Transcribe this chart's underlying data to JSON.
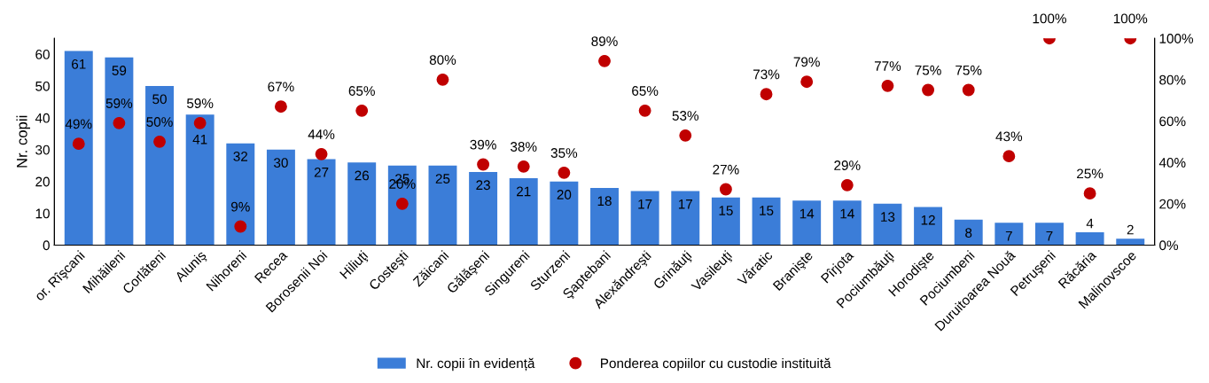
{
  "chart_data": {
    "type": "bar",
    "categories": [
      "or. Rîşcani",
      "Mihăileni",
      "Corlăteni",
      "Aluniş",
      "Nihoreni",
      "Recea",
      "Borosenii Noi",
      "Hiliuţi",
      "Costeşti",
      "Zăicani",
      "Gălăşeni",
      "Singureni",
      "Sturzeni",
      "Şaptebani",
      "Alexăndreşti",
      "Grinăuţi",
      "Vasileuţi",
      "Văratic",
      "Branişte",
      "Pîrjota",
      "Pociumbăuţi",
      "Horodişte",
      "Pociumbeni",
      "Duruitoarea Nouă",
      "Petruşeni",
      "Răcăria",
      "Malinovscoe"
    ],
    "ylabel": "Nr. copii",
    "ylim": [
      0,
      65
    ],
    "yticks": [
      0,
      10,
      20,
      30,
      40,
      50,
      60
    ],
    "y2lim": [
      0,
      100
    ],
    "y2ticks": [
      {
        "value": 0,
        "label": "0%"
      },
      {
        "value": 20,
        "label": "20%"
      },
      {
        "value": 40,
        "label": "40%"
      },
      {
        "value": 60,
        "label": "60%"
      },
      {
        "value": 80,
        "label": "80%"
      },
      {
        "value": 100,
        "label": "100%"
      }
    ],
    "series": [
      {
        "name": "Nr. copii în evidență",
        "type": "bar",
        "color": "#3b7dd8",
        "values": [
          61,
          59,
          50,
          41,
          32,
          30,
          27,
          26,
          25,
          25,
          23,
          21,
          20,
          18,
          17,
          17,
          15,
          15,
          14,
          14,
          13,
          12,
          8,
          7,
          7,
          4,
          2
        ],
        "data_labels": true
      },
      {
        "name": "Ponderea copiilor cu custodie instituită",
        "type": "scatter",
        "axis": "y2",
        "color": "#c00000",
        "marker": "circle",
        "values": [
          49,
          59,
          50,
          59,
          9,
          67,
          44,
          65,
          20,
          80,
          39,
          38,
          35,
          89,
          65,
          53,
          27,
          73,
          79,
          29,
          77,
          75,
          75,
          43,
          100,
          25,
          100
        ],
        "value_labels": [
          "49%",
          "59%",
          "50%",
          "59%",
          "9%",
          "67%",
          "44%",
          "65%",
          "20%",
          "80%",
          "39%",
          "38%",
          "35%",
          "89%",
          "65%",
          "53%",
          "27%",
          "73%",
          "79%",
          "29%",
          "77%",
          "75%",
          "75%",
          "43%",
          "100%",
          "25%",
          "100%"
        ]
      }
    ],
    "grid": false,
    "legend": "bottom"
  }
}
